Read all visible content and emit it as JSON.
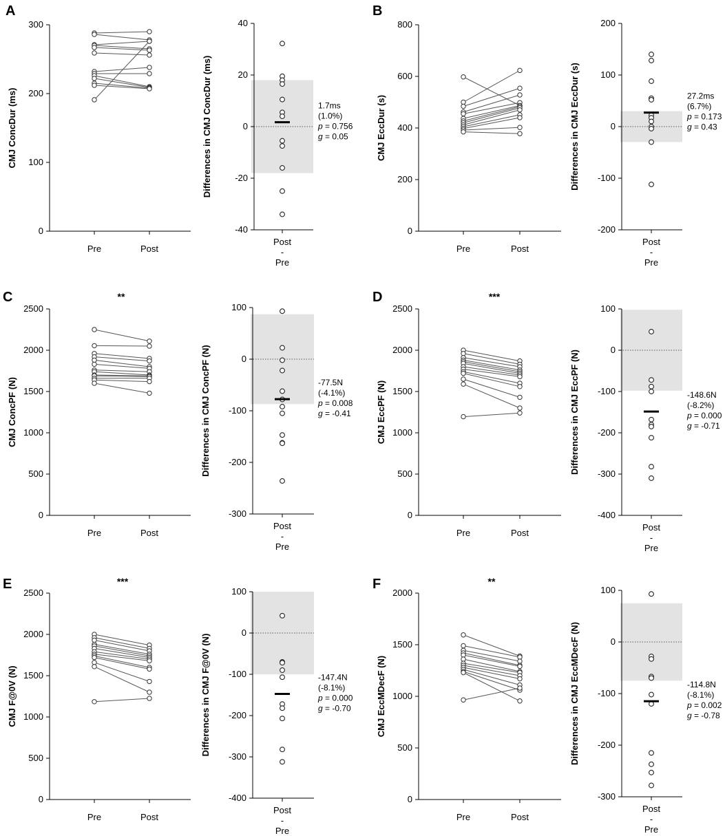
{
  "figure": {
    "description_free": true
  },
  "chart_data": [
    {
      "panel": "A",
      "type": "scatter",
      "paired": {
        "ylabel": "CMJ ConcDur (ms)",
        "categories": [
          "Pre",
          "Post"
        ],
        "ylim": [
          0,
          300
        ],
        "yticks": [
          0,
          100,
          200,
          300
        ],
        "significance": "",
        "pairs": [
          [
            288,
            290
          ],
          [
            286,
            278
          ],
          [
            271,
            276
          ],
          [
            270,
            265
          ],
          [
            267,
            263
          ],
          [
            259,
            256
          ],
          [
            232,
            238
          ],
          [
            229,
            229
          ],
          [
            226,
            210
          ],
          [
            222,
            209
          ],
          [
            215,
            208
          ],
          [
            212,
            207
          ],
          [
            191,
            276
          ]
        ]
      },
      "diff": {
        "ylabel": "Differences in CMJ ConcDur (ms)",
        "xlabel_lines": [
          "Post",
          "-",
          "Pre"
        ],
        "ylim": [
          -40,
          40
        ],
        "yticks": [
          -40,
          -20,
          0,
          20,
          40
        ],
        "points": [
          32.2,
          19.5,
          18,
          16.5,
          10.5,
          5.5,
          4,
          -5.5,
          -7.5,
          -16,
          -25,
          -34
        ],
        "mean": 1.7,
        "band": [
          -18,
          18
        ],
        "stats": [
          "1.7ms",
          "(1.0%)",
          "p = 0.756",
          "g = 0.05"
        ]
      }
    },
    {
      "panel": "B",
      "type": "scatter",
      "paired": {
        "ylabel": "CMJ EccDur (s)",
        "categories": [
          "Pre",
          "Post"
        ],
        "ylim": [
          0,
          800
        ],
        "yticks": [
          0,
          200,
          400,
          600,
          800
        ],
        "significance": "",
        "pairs": [
          [
            598,
            487
          ],
          [
            500,
            623
          ],
          [
            484,
            554
          ],
          [
            462,
            528
          ],
          [
            455,
            498
          ],
          [
            437,
            487
          ],
          [
            427,
            483
          ],
          [
            420,
            478
          ],
          [
            412,
            470
          ],
          [
            405,
            451
          ],
          [
            398,
            440
          ],
          [
            392,
            402
          ],
          [
            385,
            378
          ]
        ]
      },
      "diff": {
        "ylabel": "Differences in CMJ EccDur (s)",
        "xlabel_lines": [
          "Post",
          "-",
          "Pre"
        ],
        "ylim": [
          -200,
          200
        ],
        "yticks": [
          -200,
          -100,
          0,
          100,
          200
        ],
        "points": [
          140,
          128,
          88,
          55,
          52,
          22,
          17,
          10,
          0,
          -4,
          -30,
          -112
        ],
        "mean": 27.2,
        "band": [
          -30,
          30
        ],
        "stats": [
          "27.2ms",
          "(6.7%)",
          "p = 0.173",
          "g = 0.43"
        ]
      }
    },
    {
      "panel": "C",
      "type": "scatter",
      "paired": {
        "ylabel": "CMJ ConcPF (N)",
        "categories": [
          "Pre",
          "Post"
        ],
        "ylim": [
          0,
          2500
        ],
        "yticks": [
          0,
          500,
          1000,
          1500,
          2000,
          2500
        ],
        "significance": "**",
        "pairs": [
          [
            2250,
            2110
          ],
          [
            2055,
            2050
          ],
          [
            1960,
            1900
          ],
          [
            1920,
            1870
          ],
          [
            1880,
            1800
          ],
          [
            1830,
            1780
          ],
          [
            1760,
            1740
          ],
          [
            1740,
            1700
          ],
          [
            1700,
            1690
          ],
          [
            1690,
            1680
          ],
          [
            1660,
            1660
          ],
          [
            1640,
            1620
          ],
          [
            1600,
            1480
          ]
        ]
      },
      "diff": {
        "ylabel": "Differences in CMJ ConcPF (N)",
        "xlabel_lines": [
          "Post",
          "-",
          "Pre"
        ],
        "ylim": [
          -300,
          100
        ],
        "yticks": [
          -300,
          -200,
          -100,
          0,
          100
        ],
        "points": [
          93,
          22,
          -2,
          -22,
          -62,
          -78,
          -92,
          -105,
          -147,
          -162,
          -163,
          -236
        ],
        "mean": -77.5,
        "band": [
          -87,
          87
        ],
        "stats": [
          "-77.5N",
          "(-4.1%)",
          "p = 0.008",
          "g = -0.41"
        ]
      }
    },
    {
      "panel": "D",
      "type": "scatter",
      "paired": {
        "ylabel": "CMJ EccPF (N)",
        "categories": [
          "Pre",
          "Post"
        ],
        "ylim": [
          0,
          2500
        ],
        "yticks": [
          0,
          500,
          1000,
          1500,
          2000,
          2500
        ],
        "significance": "***",
        "pairs": [
          [
            2000,
            1870
          ],
          [
            1960,
            1830
          ],
          [
            1910,
            1800
          ],
          [
            1880,
            1760
          ],
          [
            1860,
            1740
          ],
          [
            1840,
            1720
          ],
          [
            1800,
            1700
          ],
          [
            1770,
            1680
          ],
          [
            1740,
            1600
          ],
          [
            1720,
            1560
          ],
          [
            1650,
            1430
          ],
          [
            1590,
            1300
          ],
          [
            1195,
            1240
          ]
        ]
      },
      "diff": {
        "ylabel": "Differences in CMJ EccPF (N)",
        "xlabel_lines": [
          "Post",
          "-",
          "Pre"
        ],
        "ylim": [
          -400,
          100
        ],
        "yticks": [
          -400,
          -300,
          -200,
          -100,
          0,
          100
        ],
        "points": [
          45,
          -72,
          -88,
          -100,
          -168,
          -180,
          -185,
          -212,
          -282,
          -310
        ],
        "mean": -148.6,
        "band": [
          -98,
          98
        ],
        "stats": [
          "-148.6N",
          "(-8.2%)",
          "p = 0.000",
          "g = -0.71"
        ]
      }
    },
    {
      "panel": "E",
      "type": "scatter",
      "paired": {
        "ylabel": "CMJ F@0V (N)",
        "categories": [
          "Pre",
          "Post"
        ],
        "ylim": [
          0,
          2500
        ],
        "yticks": [
          0,
          500,
          1000,
          1500,
          2000,
          2500
        ],
        "significance": "***",
        "pairs": [
          [
            2000,
            1870
          ],
          [
            1960,
            1830
          ],
          [
            1930,
            1800
          ],
          [
            1880,
            1760
          ],
          [
            1860,
            1740
          ],
          [
            1830,
            1720
          ],
          [
            1790,
            1700
          ],
          [
            1760,
            1680
          ],
          [
            1740,
            1600
          ],
          [
            1720,
            1580
          ],
          [
            1660,
            1430
          ],
          [
            1610,
            1300
          ],
          [
            1185,
            1225
          ]
        ]
      },
      "diff": {
        "ylabel": "Differences in CMJ F@0V (N)",
        "xlabel_lines": [
          "Post",
          "-",
          "Pre"
        ],
        "ylim": [
          -400,
          100
        ],
        "yticks": [
          -400,
          -300,
          -200,
          -100,
          0,
          100
        ],
        "points": [
          42,
          -70,
          -72,
          -90,
          -107,
          -172,
          -182,
          -207,
          -282,
          -312
        ],
        "mean": -147.4,
        "band": [
          -100,
          100
        ],
        "stats": [
          "-147.4N",
          "(-8.1%)",
          "p = 0.000",
          "g = -0.70"
        ]
      }
    },
    {
      "panel": "F",
      "type": "scatter",
      "paired": {
        "ylabel": "CMJ EccMDecF (N)",
        "categories": [
          "Pre",
          "Post"
        ],
        "ylim": [
          0,
          2000
        ],
        "yticks": [
          0,
          500,
          1000,
          1500,
          2000
        ],
        "significance": "**",
        "pairs": [
          [
            1595,
            1390
          ],
          [
            1490,
            1380
          ],
          [
            1445,
            1340
          ],
          [
            1420,
            1300
          ],
          [
            1400,
            1290
          ],
          [
            1360,
            1240
          ],
          [
            1320,
            1230
          ],
          [
            1300,
            1200
          ],
          [
            1280,
            1170
          ],
          [
            1260,
            1110
          ],
          [
            1240,
            1060
          ],
          [
            1230,
            955
          ],
          [
            965,
            1080
          ]
        ]
      },
      "diff": {
        "ylabel": "Differences in CMJ EccMDecF (N)",
        "xlabel_lines": [
          "Post",
          "-",
          "Pre"
        ],
        "ylim": [
          -300,
          100
        ],
        "yticks": [
          -300,
          -200,
          -100,
          0,
          100
        ],
        "points": [
          93,
          -28,
          -33,
          -67,
          -70,
          -102,
          -120,
          -215,
          -237,
          -253,
          -278
        ],
        "mean": -114.8,
        "band": [
          -75,
          75
        ],
        "stats": [
          "-114.8N",
          "(-8.1%)",
          "p = 0.002",
          "g = -0.78"
        ]
      }
    }
  ]
}
